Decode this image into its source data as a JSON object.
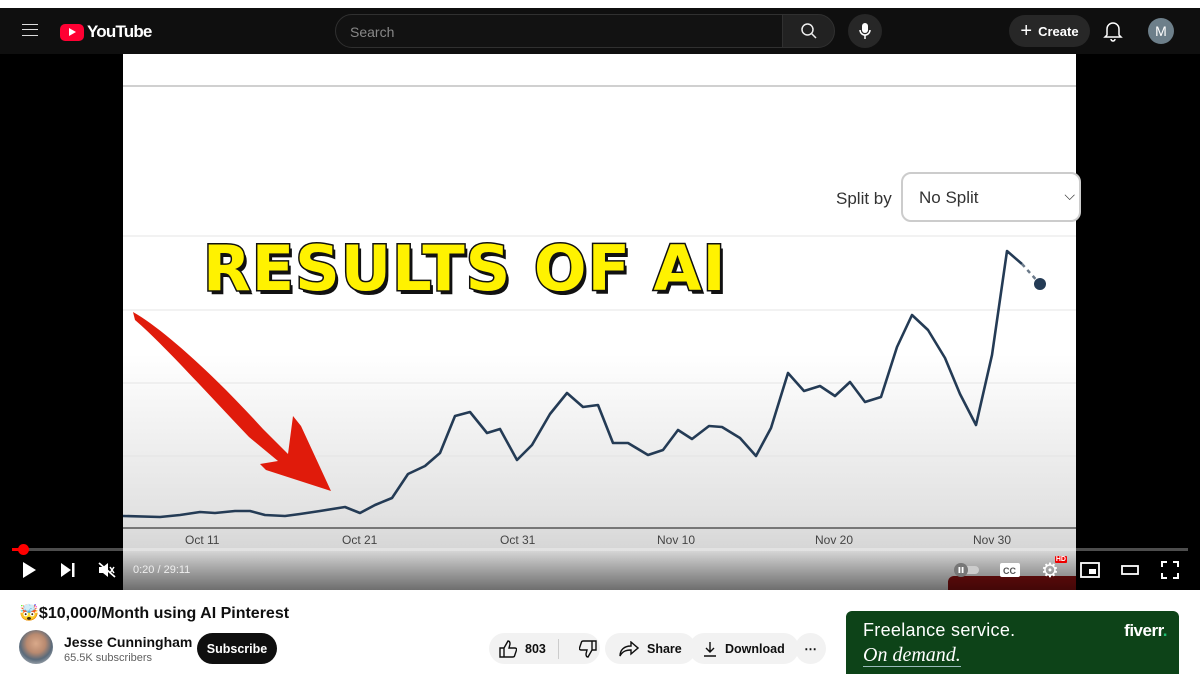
{
  "header": {
    "logo": "YouTube",
    "search_placeholder": "Search",
    "create_label": "Create",
    "account_initial": "M"
  },
  "video": {
    "frame": {
      "split_by_label": "Split by",
      "split_value": "No Split",
      "overlay_text": "RESULTS OF AI",
      "x_ticks": [
        "Oct 11",
        "Oct 21",
        "Oct 31",
        "Nov 10",
        "Nov 20",
        "Nov 30"
      ]
    },
    "time": "0:20 / 29:11",
    "progress_fraction": 0.011,
    "settings_badge": "HD",
    "colors": {
      "progress": "#ff0000",
      "line": "#243b55",
      "arrow": "#e01b0b",
      "overlay_text": "#fff200"
    }
  },
  "info": {
    "title": "🤯$10,000/Month using AI Pinterest",
    "channel": "Jesse Cunningham",
    "subscribers": "65.5K subscribers",
    "subscribe_label": "Subscribe",
    "likes": "803",
    "share_label": "Share",
    "download_label": "Download",
    "more_label": "⋯"
  },
  "ad": {
    "line1": "Freelance service.",
    "line2": "On demand.",
    "brand": "fiverr",
    "brand_dot": ".",
    "bg_color": "#0d4318"
  }
}
